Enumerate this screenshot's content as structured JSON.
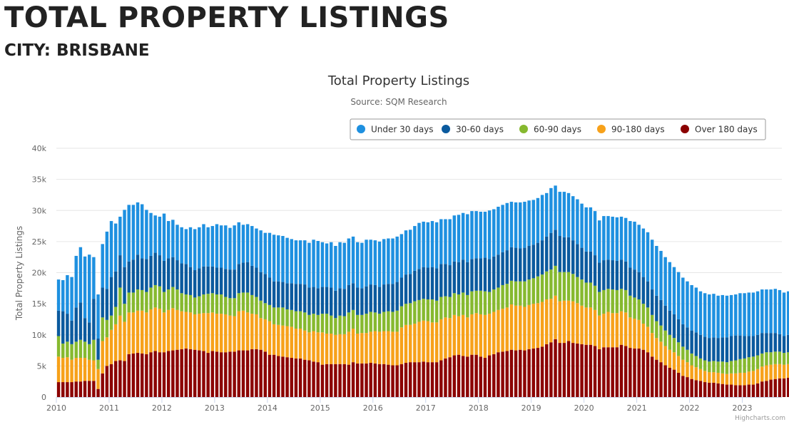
{
  "header": {
    "title": "TOTAL PROPERTY LISTINGS",
    "subtitle": "CITY: BRISBANE"
  },
  "credit": "Highcharts.com",
  "chart_data": {
    "type": "bar",
    "stacked": true,
    "title": "Total Property Listings",
    "subtitle": "Source: SQM Research",
    "ylabel": "Total Property Listings",
    "xlabel": "",
    "ylim": [
      0,
      40000
    ],
    "yticks": [
      0,
      5000,
      10000,
      15000,
      20000,
      25000,
      30000,
      35000,
      40000
    ],
    "ytick_labels": [
      "0",
      "5k",
      "10k",
      "15k",
      "20k",
      "25k",
      "30k",
      "35k",
      "40k"
    ],
    "xlim": [
      2010.0,
      2023.75
    ],
    "xticks": [
      "2010",
      "2011",
      "2012",
      "2013",
      "2014",
      "2015",
      "2016",
      "2017",
      "2018",
      "2019",
      "2020",
      "2021",
      "2022",
      "2023"
    ],
    "frequency": "monthly",
    "start": "2010-01",
    "grid": true,
    "legend_position": "top-right",
    "series_colors": [
      "#8b0000",
      "#f7a11a",
      "#86b92f",
      "#0b5a9e",
      "#1e90e0"
    ],
    "legend_order": [
      4,
      3,
      2,
      1,
      0
    ],
    "series": [
      {
        "name": "Over 180 days",
        "color": "#8b0000",
        "values": [
          2400,
          2400,
          2400,
          2400,
          2500,
          2500,
          2600,
          2600,
          2600,
          1300,
          3800,
          5000,
          5300,
          5800,
          5900,
          5800,
          6900,
          7000,
          7100,
          7000,
          6900,
          7200,
          7400,
          7200,
          7200,
          7400,
          7500,
          7600,
          7700,
          7800,
          7700,
          7600,
          7500,
          7400,
          7100,
          7400,
          7300,
          7200,
          7200,
          7300,
          7300,
          7500,
          7500,
          7500,
          7700,
          7700,
          7600,
          7300,
          6800,
          6800,
          6600,
          6500,
          6400,
          6300,
          6200,
          6200,
          6000,
          5900,
          5700,
          5600,
          5200,
          5300,
          5300,
          5300,
          5300,
          5300,
          5200,
          5600,
          5400,
          5400,
          5400,
          5500,
          5400,
          5300,
          5300,
          5200,
          5100,
          5100,
          5300,
          5500,
          5600,
          5600,
          5600,
          5700,
          5600,
          5600,
          5600,
          5900,
          6200,
          6400,
          6700,
          6800,
          6600,
          6500,
          6800,
          6800,
          6500,
          6300,
          6700,
          6900,
          7200,
          7300,
          7400,
          7600,
          7500,
          7600,
          7500,
          7700,
          7800,
          7900,
          8100,
          8500,
          8800,
          9300,
          8700,
          8700,
          9000,
          8700,
          8600,
          8500,
          8400,
          8400,
          8200,
          7700,
          8000,
          8000,
          8000,
          8000,
          8400,
          8200,
          7900,
          7800,
          7800,
          7600,
          7200,
          6500,
          6000,
          5600,
          5100,
          4700,
          4400,
          3900,
          3400,
          3200,
          2900,
          2700,
          2600,
          2400,
          2300,
          2300,
          2200,
          2100,
          2000,
          2000,
          1900,
          1900,
          1900,
          2000,
          2000,
          2200,
          2500,
          2600,
          2800,
          2900,
          3000,
          3000,
          3100,
          3100,
          3000,
          2800,
          2600,
          2300
        ]
      },
      {
        "name": "90-180 days",
        "color": "#f7a11a",
        "values": [
          4100,
          3900,
          4000,
          3600,
          3800,
          3800,
          3700,
          3400,
          3300,
          3200,
          5200,
          4600,
          5500,
          5900,
          7200,
          6300,
          6700,
          6600,
          6800,
          6900,
          6700,
          6900,
          7000,
          7000,
          6400,
          6600,
          6800,
          6400,
          6100,
          5900,
          5900,
          5700,
          5900,
          6100,
          6400,
          6200,
          6100,
          6200,
          6100,
          5800,
          5700,
          6300,
          6400,
          6100,
          5700,
          5600,
          5100,
          5200,
          5400,
          4900,
          5000,
          5000,
          5000,
          5000,
          4800,
          4800,
          4700,
          4500,
          4900,
          4800,
          5200,
          4900,
          4900,
          4700,
          4800,
          4800,
          5300,
          5400,
          4800,
          4900,
          4900,
          5000,
          5200,
          5200,
          5300,
          5400,
          5400,
          5400,
          5900,
          6100,
          6000,
          6200,
          6500,
          6600,
          6600,
          6400,
          6400,
          6600,
          6600,
          6300,
          6500,
          6200,
          6600,
          6300,
          6500,
          6700,
          6800,
          6900,
          6700,
          6800,
          6800,
          6900,
          7000,
          7300,
          7200,
          7100,
          7000,
          7100,
          7200,
          7200,
          7200,
          7200,
          7000,
          7000,
          6700,
          6800,
          6500,
          6700,
          6500,
          6200,
          6000,
          6000,
          5800,
          5400,
          5400,
          5700,
          5500,
          5500,
          5400,
          5400,
          4900,
          4800,
          4600,
          4200,
          4100,
          3800,
          3500,
          3300,
          3100,
          2900,
          2800,
          2700,
          2600,
          2400,
          2200,
          2100,
          1900,
          1800,
          1700,
          1700,
          1700,
          1700,
          1700,
          1800,
          1900,
          2000,
          2000,
          2100,
          2200,
          2300,
          2400,
          2500,
          2400,
          2400,
          2300,
          2200,
          2200,
          2100,
          2000,
          1900,
          2000,
          2100
        ]
      },
      {
        "name": "60-90 days",
        "color": "#86b92f",
        "values": [
          3300,
          2300,
          2500,
          2500,
          2600,
          2900,
          2600,
          2500,
          3300,
          1500,
          3800,
          2800,
          2300,
          2800,
          4500,
          2900,
          3200,
          3200,
          3400,
          3300,
          3300,
          3500,
          3600,
          3600,
          3300,
          3300,
          3400,
          3300,
          2900,
          2800,
          2800,
          2700,
          2800,
          3000,
          3100,
          3100,
          3100,
          3100,
          2800,
          2800,
          2900,
          2900,
          2900,
          3200,
          3000,
          2800,
          2800,
          2600,
          2600,
          2700,
          2800,
          2900,
          2700,
          2700,
          2800,
          2800,
          2900,
          2800,
          2800,
          2800,
          3000,
          3200,
          2900,
          2700,
          3000,
          2900,
          3100,
          3000,
          3000,
          2900,
          3100,
          3200,
          3000,
          2900,
          3100,
          3200,
          3200,
          3400,
          3400,
          3400,
          3500,
          3600,
          3500,
          3500,
          3500,
          3700,
          3500,
          3600,
          3400,
          3400,
          3500,
          3500,
          3600,
          3600,
          3700,
          3600,
          3800,
          3800,
          3500,
          3600,
          3600,
          3800,
          3800,
          3800,
          3900,
          3900,
          4100,
          4100,
          4100,
          4300,
          4400,
          4500,
          4700,
          4800,
          4700,
          4600,
          4600,
          4400,
          4200,
          4200,
          4000,
          4000,
          3900,
          3800,
          3800,
          3700,
          3800,
          3700,
          3600,
          3600,
          3500,
          3400,
          3300,
          3200,
          3100,
          2900,
          2700,
          2600,
          2500,
          2400,
          2300,
          2200,
          2100,
          2000,
          1900,
          1800,
          1700,
          1700,
          1700,
          1800,
          1800,
          1900,
          1900,
          2000,
          2100,
          2200,
          2300,
          2300,
          2300,
          2200,
          2100,
          2100,
          2000,
          2000,
          2000,
          1900,
          1900,
          1800,
          1800,
          1700,
          1700,
          1600
        ]
      },
      {
        "name": "30-60 days",
        "color": "#0b5a9e",
        "values": [
          4100,
          5200,
          4500,
          3800,
          5500,
          6000,
          3800,
          3500,
          6600,
          3400,
          4800,
          5000,
          6200,
          5700,
          5200,
          5900,
          5000,
          5300,
          5600,
          5100,
          5300,
          5100,
          5200,
          5000,
          5000,
          5000,
          4800,
          4700,
          4800,
          4900,
          4500,
          4400,
          4500,
          4500,
          4400,
          4300,
          4300,
          4300,
          4500,
          4600,
          4600,
          4700,
          4800,
          4900,
          4700,
          4700,
          4600,
          4700,
          4400,
          4200,
          4200,
          4100,
          4200,
          4300,
          4400,
          4400,
          4500,
          4400,
          4300,
          4300,
          4300,
          4300,
          4500,
          4400,
          4400,
          4400,
          4400,
          4300,
          4400,
          4300,
          4400,
          4400,
          4400,
          4300,
          4400,
          4400,
          4500,
          4600,
          4600,
          4700,
          4700,
          4900,
          5000,
          5100,
          5100,
          5200,
          5200,
          5300,
          5200,
          5100,
          5100,
          5200,
          5300,
          5300,
          5200,
          5200,
          5200,
          5400,
          5300,
          5300,
          5300,
          5300,
          5400,
          5400,
          5400,
          5300,
          5400,
          5400,
          5400,
          5400,
          5500,
          5600,
          5900,
          5800,
          5800,
          5600,
          5600,
          5400,
          5300,
          5100,
          5000,
          5000,
          4900,
          4700,
          4800,
          4700,
          4700,
          4700,
          4700,
          4600,
          4500,
          4500,
          4400,
          4300,
          4200,
          4100,
          4100,
          4100,
          4000,
          3900,
          3800,
          3700,
          3600,
          3600,
          3700,
          3800,
          3800,
          3800,
          3800,
          3800,
          3800,
          3900,
          4000,
          4000,
          4000,
          3800,
          3600,
          3400,
          3300,
          3300,
          3300,
          3100,
          3100,
          3000,
          2800,
          2700,
          2800,
          2800,
          3000,
          3200,
          3300,
          3400
        ]
      },
      {
        "name": "Under 30 days",
        "color": "#1e90e0",
        "values": [
          5000,
          5000,
          6200,
          7000,
          8300,
          8900,
          9900,
          10900,
          6700,
          7100,
          7000,
          9200,
          9000,
          7700,
          6200,
          9200,
          9100,
          8800,
          8400,
          8700,
          7900,
          6900,
          6000,
          6200,
          7600,
          6000,
          6000,
          5700,
          5800,
          5600,
          6400,
          6600,
          6600,
          6800,
          6300,
          6500,
          7000,
          6800,
          7000,
          6700,
          7100,
          6700,
          6100,
          6100,
          6400,
          6300,
          6700,
          6600,
          7200,
          7500,
          7400,
          7400,
          7300,
          7100,
          7000,
          7000,
          7100,
          7200,
          7600,
          7600,
          7200,
          7000,
          7300,
          7200,
          7400,
          7400,
          7500,
          7500,
          7300,
          7300,
          7500,
          7200,
          7200,
          7300,
          7300,
          7300,
          7300,
          7300,
          7000,
          7100,
          7100,
          7200,
          7400,
          7300,
          7300,
          7400,
          7400,
          7200,
          7200,
          7400,
          7400,
          7600,
          7500,
          7700,
          7700,
          7600,
          7500,
          7400,
          7800,
          7600,
          7700,
          7600,
          7600,
          7300,
          7300,
          7400,
          7400,
          7300,
          7200,
          7200,
          7300,
          7000,
          7200,
          7100,
          7100,
          7300,
          7100,
          7100,
          7200,
          7100,
          7100,
          7100,
          7100,
          6800,
          7100,
          7000,
          7000,
          7000,
          6900,
          7000,
          7500,
          7700,
          7600,
          7800,
          7900,
          8000,
          8000,
          7900,
          7800,
          7800,
          7600,
          7600,
          7500,
          7400,
          7300,
          7200,
          7000,
          7000,
          7000,
          7000,
          6800,
          6800,
          6700,
          6600,
          6600,
          6800,
          6900,
          7000,
          7000,
          7000,
          7000,
          7000,
          7000,
          7100,
          7100,
          7000,
          7000,
          7000,
          7000,
          7000,
          7000,
          7100
        ]
      }
    ]
  }
}
